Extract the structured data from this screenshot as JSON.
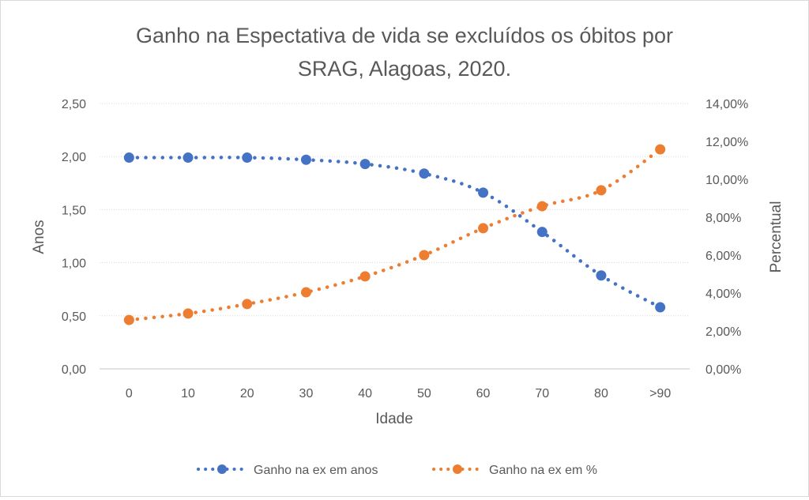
{
  "chart_data": {
    "type": "line",
    "title_lines": [
      "Ganho na Espectativa de vida se excluídos os óbitos por",
      "SRAG, Alagoas, 2020."
    ],
    "title": "Ganho na Espectativa de vida se excluídos os óbitos por SRAG, Alagoas, 2020.",
    "xlabel": "Idade",
    "ylabel": "Anos",
    "y2label": "Percentual",
    "categories": [
      "0",
      "10",
      "20",
      "30",
      "40",
      "50",
      "60",
      "70",
      "80",
      ">90"
    ],
    "ylim": [
      0,
      2.5
    ],
    "y_ticks": [
      "0,00",
      "0,50",
      "1,00",
      "1,50",
      "2,00",
      "2,50"
    ],
    "y_tick_values": [
      0,
      0.5,
      1.0,
      1.5,
      2.0,
      2.5
    ],
    "y2lim": [
      0,
      14
    ],
    "y2_ticks": [
      "0,00%",
      "2,00%",
      "4,00%",
      "6,00%",
      "8,00%",
      "10,00%",
      "12,00%",
      "14,00%"
    ],
    "y2_tick_values": [
      0,
      2,
      4,
      6,
      8,
      10,
      12,
      14
    ],
    "grid": true,
    "legend_position": "bottom",
    "series": [
      {
        "name": "Ganho na ex em anos",
        "axis": "left",
        "color": "#4472C4",
        "style": "dotted-smooth-with-markers",
        "values": [
          1.99,
          1.99,
          1.99,
          1.97,
          1.93,
          1.84,
          1.66,
          1.29,
          0.88,
          0.58
        ]
      },
      {
        "name": "Ganho na ex em %",
        "axis": "right",
        "color": "#ED7D31",
        "style": "dotted-smooth-with-markers",
        "values": [
          2.58,
          2.92,
          3.42,
          4.04,
          4.88,
          6.0,
          7.42,
          8.58,
          9.42,
          11.58
        ]
      }
    ]
  }
}
